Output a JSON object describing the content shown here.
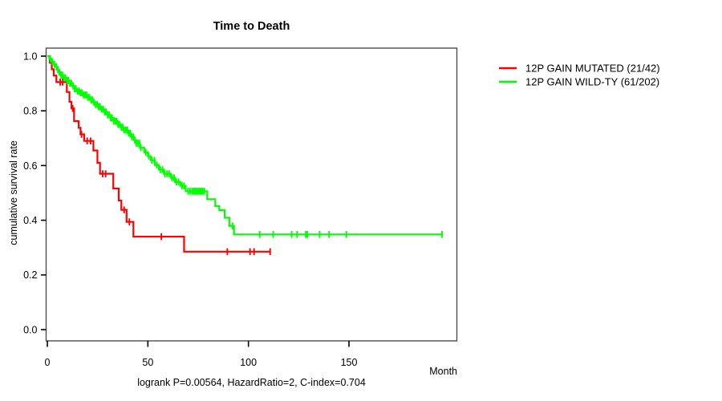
{
  "chart_data": {
    "type": "line",
    "subtype": "kaplan-meier-step",
    "title": "Time to Death",
    "xlabel": "Month",
    "ylabel": "cumulative survival rate",
    "annotation": "logrank P=0.00564, HazardRatio=2, C-index=0.704",
    "xlim": [
      0,
      202
    ],
    "ylim": [
      0.0,
      1.0
    ],
    "xticks": [
      0,
      50,
      100,
      150
    ],
    "yticks": [
      0.0,
      0.2,
      0.4,
      0.6,
      0.8,
      1.0
    ],
    "grid": false,
    "legend_position": "right-outside",
    "background": "#ffffff",
    "axis_color": "#4d4d4d",
    "series": [
      {
        "name": "12P GAIN MUTATED (21/42)",
        "color": "#ff0000",
        "events_total": "21/42",
        "steps": [
          [
            0,
            1.0
          ],
          [
            1.2,
            0.976
          ],
          [
            2.2,
            0.952
          ],
          [
            3.2,
            0.929
          ],
          [
            4.5,
            0.905
          ],
          [
            9.7,
            0.869
          ],
          [
            11.0,
            0.833
          ],
          [
            12.0,
            0.809
          ],
          [
            13.3,
            0.762
          ],
          [
            15.6,
            0.738
          ],
          [
            16.5,
            0.714
          ],
          [
            18.3,
            0.69
          ],
          [
            22.9,
            0.655
          ],
          [
            24.9,
            0.61
          ],
          [
            26.2,
            0.57
          ],
          [
            32.8,
            0.516
          ],
          [
            35.5,
            0.472
          ],
          [
            36.8,
            0.438
          ],
          [
            39.4,
            0.394
          ],
          [
            42.8,
            0.34
          ],
          [
            68.0,
            0.285
          ],
          [
            110.8,
            0.285
          ]
        ],
        "censor_times": [
          6.4,
          7.6,
          12.6,
          17.0,
          19.8,
          21.5,
          27.5,
          29.0,
          38.2,
          40.8,
          56.7,
          89.5,
          100.8,
          102.8,
          110.8
        ]
      },
      {
        "name": "12P GAIN WILD-TY (61/202)",
        "color": "#00ff00",
        "events_total": "61/202",
        "steps": [
          [
            0,
            1.0
          ],
          [
            1.0,
            0.99
          ],
          [
            2.0,
            0.98
          ],
          [
            3.0,
            0.97
          ],
          [
            3.8,
            0.961
          ],
          [
            4.6,
            0.951
          ],
          [
            5.5,
            0.941
          ],
          [
            6.5,
            0.931
          ],
          [
            8.0,
            0.921
          ],
          [
            9.5,
            0.911
          ],
          [
            11.0,
            0.901
          ],
          [
            12.5,
            0.891
          ],
          [
            13.5,
            0.881
          ],
          [
            14.5,
            0.872
          ],
          [
            16.0,
            0.866
          ],
          [
            18.0,
            0.858
          ],
          [
            20.0,
            0.849
          ],
          [
            21.5,
            0.84
          ],
          [
            23.0,
            0.831
          ],
          [
            24.0,
            0.823
          ],
          [
            25.0,
            0.815
          ],
          [
            26.5,
            0.806
          ],
          [
            28.0,
            0.796
          ],
          [
            30.0,
            0.785
          ],
          [
            31.5,
            0.774
          ],
          [
            33.0,
            0.762
          ],
          [
            35.0,
            0.75
          ],
          [
            36.5,
            0.74
          ],
          [
            38.0,
            0.73
          ],
          [
            40.0,
            0.718
          ],
          [
            41.5,
            0.705
          ],
          [
            43.0,
            0.693
          ],
          [
            44.2,
            0.682
          ],
          [
            46.0,
            0.665
          ],
          [
            48.2,
            0.648
          ],
          [
            50.0,
            0.634
          ],
          [
            51.5,
            0.619
          ],
          [
            53.5,
            0.602
          ],
          [
            55.5,
            0.585
          ],
          [
            58.0,
            0.57
          ],
          [
            61.5,
            0.555
          ],
          [
            63.5,
            0.54
          ],
          [
            66.2,
            0.526
          ],
          [
            68.8,
            0.506
          ],
          [
            79.5,
            0.477
          ],
          [
            83.5,
            0.452
          ],
          [
            85.5,
            0.437
          ],
          [
            88.2,
            0.409
          ],
          [
            90.5,
            0.379
          ],
          [
            92.8,
            0.348
          ],
          [
            196.3,
            0.348
          ]
        ],
        "censor_times": [
          1.5,
          2.5,
          3.5,
          4.5,
          5.2,
          6.0,
          6.8,
          7.5,
          8.2,
          9.0,
          9.8,
          10.5,
          11.2,
          12.0,
          12.8,
          13.5,
          14.2,
          15.0,
          15.8,
          16.5,
          17.2,
          18.0,
          18.8,
          19.5,
          20.2,
          21.0,
          21.8,
          22.5,
          23.2,
          24.0,
          24.8,
          25.5,
          26.2,
          27.0,
          27.8,
          28.5,
          29.2,
          30.0,
          30.8,
          31.5,
          32.2,
          33.0,
          33.8,
          34.5,
          35.2,
          36.0,
          36.8,
          37.5,
          38.2,
          39.0,
          39.8,
          40.5,
          41.2,
          42.0,
          42.8,
          43.5,
          44.2,
          45.0,
          45.8,
          46.5,
          49.0,
          50.5,
          52.0,
          53.2,
          54.5,
          56.2,
          57.3,
          58.4,
          59.5,
          60.6,
          62.0,
          63.0,
          64.2,
          65.3,
          67.0,
          68.0,
          70.0,
          71.0,
          72.0,
          72.8,
          73.5,
          74.2,
          75.0,
          75.8,
          76.5,
          77.2,
          78.0,
          92.1,
          105.6,
          112.3,
          121.5,
          124.2,
          128.5,
          129.3,
          135.4,
          140.1,
          148.7,
          196.3
        ]
      }
    ]
  }
}
